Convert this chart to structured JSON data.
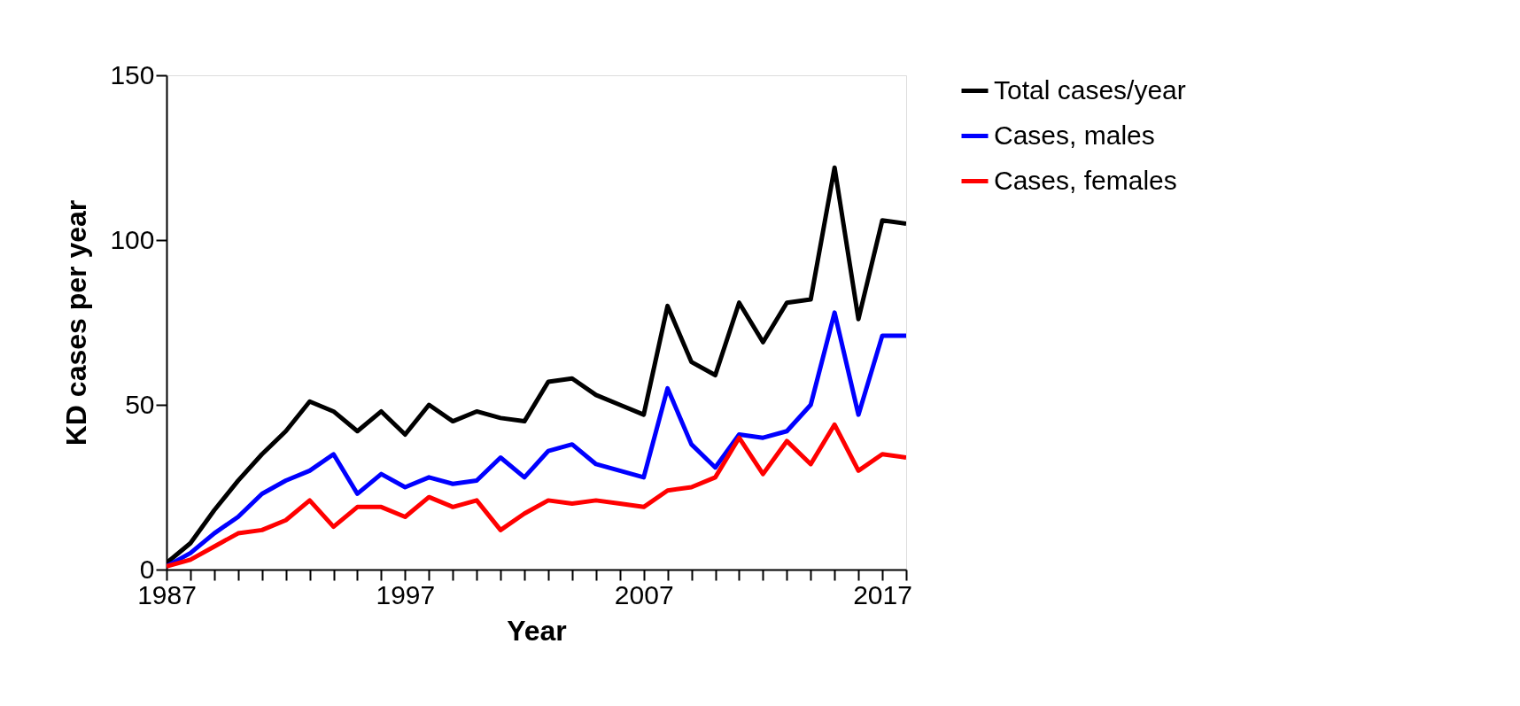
{
  "chart_data": {
    "type": "line",
    "xlabel": "Year",
    "ylabel": "KD cases per year",
    "x": [
      1987,
      1988,
      1989,
      1990,
      1991,
      1992,
      1993,
      1994,
      1995,
      1996,
      1997,
      1998,
      1999,
      2000,
      2001,
      2002,
      2003,
      2004,
      2005,
      2006,
      2007,
      2008,
      2009,
      2010,
      2011,
      2012,
      2013,
      2014,
      2015,
      2016,
      2017,
      2018
    ],
    "series": [
      {
        "name": "Total cases/year",
        "color": "#000000",
        "values": [
          2,
          8,
          18,
          27,
          35,
          42,
          51,
          48,
          42,
          48,
          41,
          50,
          45,
          48,
          46,
          45,
          57,
          58,
          53,
          50,
          47,
          80,
          63,
          59,
          81,
          69,
          81,
          82,
          122,
          76,
          106,
          105
        ]
      },
      {
        "name": "Cases, males",
        "color": "#0000ff",
        "values": [
          1,
          5,
          11,
          16,
          23,
          27,
          30,
          35,
          23,
          29,
          25,
          28,
          26,
          27,
          34,
          28,
          36,
          38,
          32,
          30,
          28,
          55,
          38,
          31,
          41,
          40,
          42,
          50,
          78,
          47,
          71,
          71
        ]
      },
      {
        "name": "Cases, females",
        "color": "#ff0000",
        "values": [
          1,
          3,
          7,
          11,
          12,
          15,
          21,
          13,
          19,
          19,
          16,
          22,
          19,
          21,
          12,
          17,
          21,
          20,
          21,
          20,
          19,
          24,
          25,
          28,
          40,
          29,
          39,
          32,
          44,
          30,
          35,
          34
        ]
      }
    ],
    "xlim": [
      1987,
      2018
    ],
    "xticks": [
      1987,
      {
        "value": 1988,
        "label": null
      },
      {
        "value": 1989,
        "label": null
      },
      {
        "value": 1990,
        "label": null
      },
      {
        "value": 1991,
        "label": null
      },
      {
        "value": 1992,
        "label": null
      },
      {
        "value": 1993,
        "label": null
      },
      {
        "value": 1994,
        "label": null
      },
      {
        "value": 1995,
        "label": null
      },
      {
        "value": 1996,
        "label": null
      },
      1997,
      {
        "value": 1998,
        "label": null
      },
      {
        "value": 1999,
        "label": null
      },
      {
        "value": 2000,
        "label": null
      },
      {
        "value": 2001,
        "label": null
      },
      {
        "value": 2002,
        "label": null
      },
      {
        "value": 2003,
        "label": null
      },
      {
        "value": 2004,
        "label": null
      },
      {
        "value": 2005,
        "label": null
      },
      {
        "value": 2006,
        "label": null
      },
      2007,
      {
        "value": 2008,
        "label": null
      },
      {
        "value": 2009,
        "label": null
      },
      {
        "value": 2010,
        "label": null
      },
      {
        "value": 2011,
        "label": null
      },
      {
        "value": 2012,
        "label": null
      },
      {
        "value": 2013,
        "label": null
      },
      {
        "value": 2014,
        "label": null
      },
      {
        "value": 2015,
        "label": null
      },
      {
        "value": 2016,
        "label": null
      },
      2017,
      {
        "value": 2018,
        "label": null
      }
    ],
    "ylim": [
      0,
      150
    ],
    "yticks": [
      0,
      50,
      100,
      150
    ],
    "grid": false,
    "legend": "top right",
    "marker": "none",
    "line_style": "solid"
  }
}
